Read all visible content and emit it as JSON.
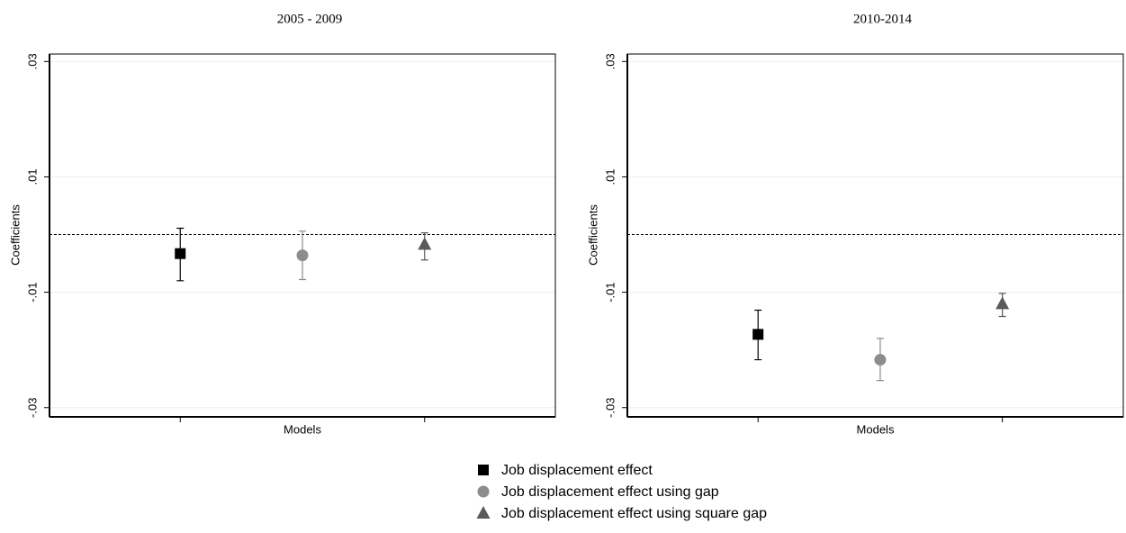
{
  "chart_data": [
    {
      "type": "errorbar",
      "title": "2005 - 2009",
      "x_label": "Models",
      "y_label": "Coefficients",
      "xlim": [
        -0.07,
        4.07
      ],
      "xticks": [
        1,
        3
      ],
      "ylim": [
        -0.0316,
        0.0313
      ],
      "yticks": [
        {
          "value": -0.03,
          "label": "-.03"
        },
        {
          "value": -0.01,
          "label": "-.01"
        },
        {
          "value": 0.01,
          "label": ".01"
        },
        {
          "value": 0.03,
          "label": ".03"
        }
      ],
      "grid": true,
      "reference_line": 0,
      "series": [
        {
          "name": "Job displacement effect",
          "color": "#000000",
          "marker": "square",
          "x": [
            1
          ],
          "values": [
            -0.0033
          ],
          "lower": [
            -0.008
          ],
          "upper": [
            0.0011
          ]
        },
        {
          "name": "Job displacement effect using gap",
          "color": "#8c8c8c",
          "marker": "circle",
          "x": [
            2
          ],
          "values": [
            -0.0036
          ],
          "lower": [
            -0.0078
          ],
          "upper": [
            0.0006
          ]
        },
        {
          "name": "Job displacement effect using square gap",
          "color": "#5a5a5a",
          "marker": "triangle",
          "x": [
            3
          ],
          "values": [
            -0.0017
          ],
          "lower": [
            -0.0044
          ],
          "upper": [
            0.0003
          ]
        }
      ]
    },
    {
      "type": "errorbar",
      "title": "2010-2014",
      "x_label": "Models",
      "y_label": "Coefficients",
      "xlim": [
        -0.07,
        3.99
      ],
      "xticks": [
        1,
        3
      ],
      "ylim": [
        -0.0316,
        0.0313
      ],
      "yticks": [
        {
          "value": -0.03,
          "label": "-.03"
        },
        {
          "value": -0.01,
          "label": "-.01"
        },
        {
          "value": 0.01,
          "label": ".01"
        },
        {
          "value": 0.03,
          "label": ".03"
        }
      ],
      "grid": true,
      "reference_line": 0,
      "series": [
        {
          "name": "Job displacement effect",
          "color": "#000000",
          "marker": "square",
          "x": [
            1
          ],
          "values": [
            -0.0173
          ],
          "lower": [
            -0.0217
          ],
          "upper": [
            -0.0131
          ]
        },
        {
          "name": "Job displacement effect using gap",
          "color": "#8c8c8c",
          "marker": "circle",
          "x": [
            2
          ],
          "values": [
            -0.0217
          ],
          "lower": [
            -0.0253
          ],
          "upper": [
            -0.018
          ]
        },
        {
          "name": "Job displacement effect using square gap",
          "color": "#5a5a5a",
          "marker": "triangle",
          "x": [
            3
          ],
          "values": [
            -0.012
          ],
          "lower": [
            -0.0142
          ],
          "upper": [
            -0.0102
          ]
        }
      ]
    }
  ]
}
